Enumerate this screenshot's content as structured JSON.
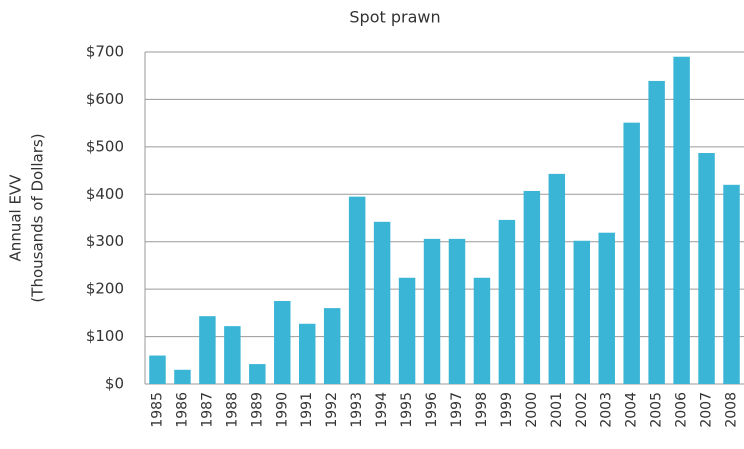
{
  "chart_data": {
    "type": "bar",
    "title": "Spot prawn",
    "ylabel": [
      "Annual EVV",
      "(Thousands of Dollars)"
    ],
    "categories": [
      "1985",
      "1986",
      "1987",
      "1988",
      "1989",
      "1990",
      "1991",
      "1992",
      "1993",
      "1994",
      "1995",
      "1996",
      "1997",
      "1998",
      "1999",
      "2000",
      "2001",
      "2002",
      "2003",
      "2004",
      "2005",
      "2006",
      "2007",
      "2008"
    ],
    "values": [
      60,
      30,
      143,
      122,
      42,
      175,
      127,
      160,
      395,
      342,
      224,
      306,
      306,
      224,
      346,
      407,
      443,
      302,
      319,
      551,
      639,
      690,
      487,
      420
    ],
    "color": "#3bb5d6",
    "ylim": [
      0,
      700
    ],
    "yticks": [
      {
        "value": 0,
        "label": "$0"
      },
      {
        "value": 100,
        "label": "$100"
      },
      {
        "value": 200,
        "label": "$200"
      },
      {
        "value": 300,
        "label": "$300"
      },
      {
        "value": 400,
        "label": "$400"
      },
      {
        "value": 500,
        "label": "$500"
      },
      {
        "value": 600,
        "label": "$600"
      },
      {
        "value": 700,
        "label": "$700"
      }
    ],
    "grid": true
  }
}
